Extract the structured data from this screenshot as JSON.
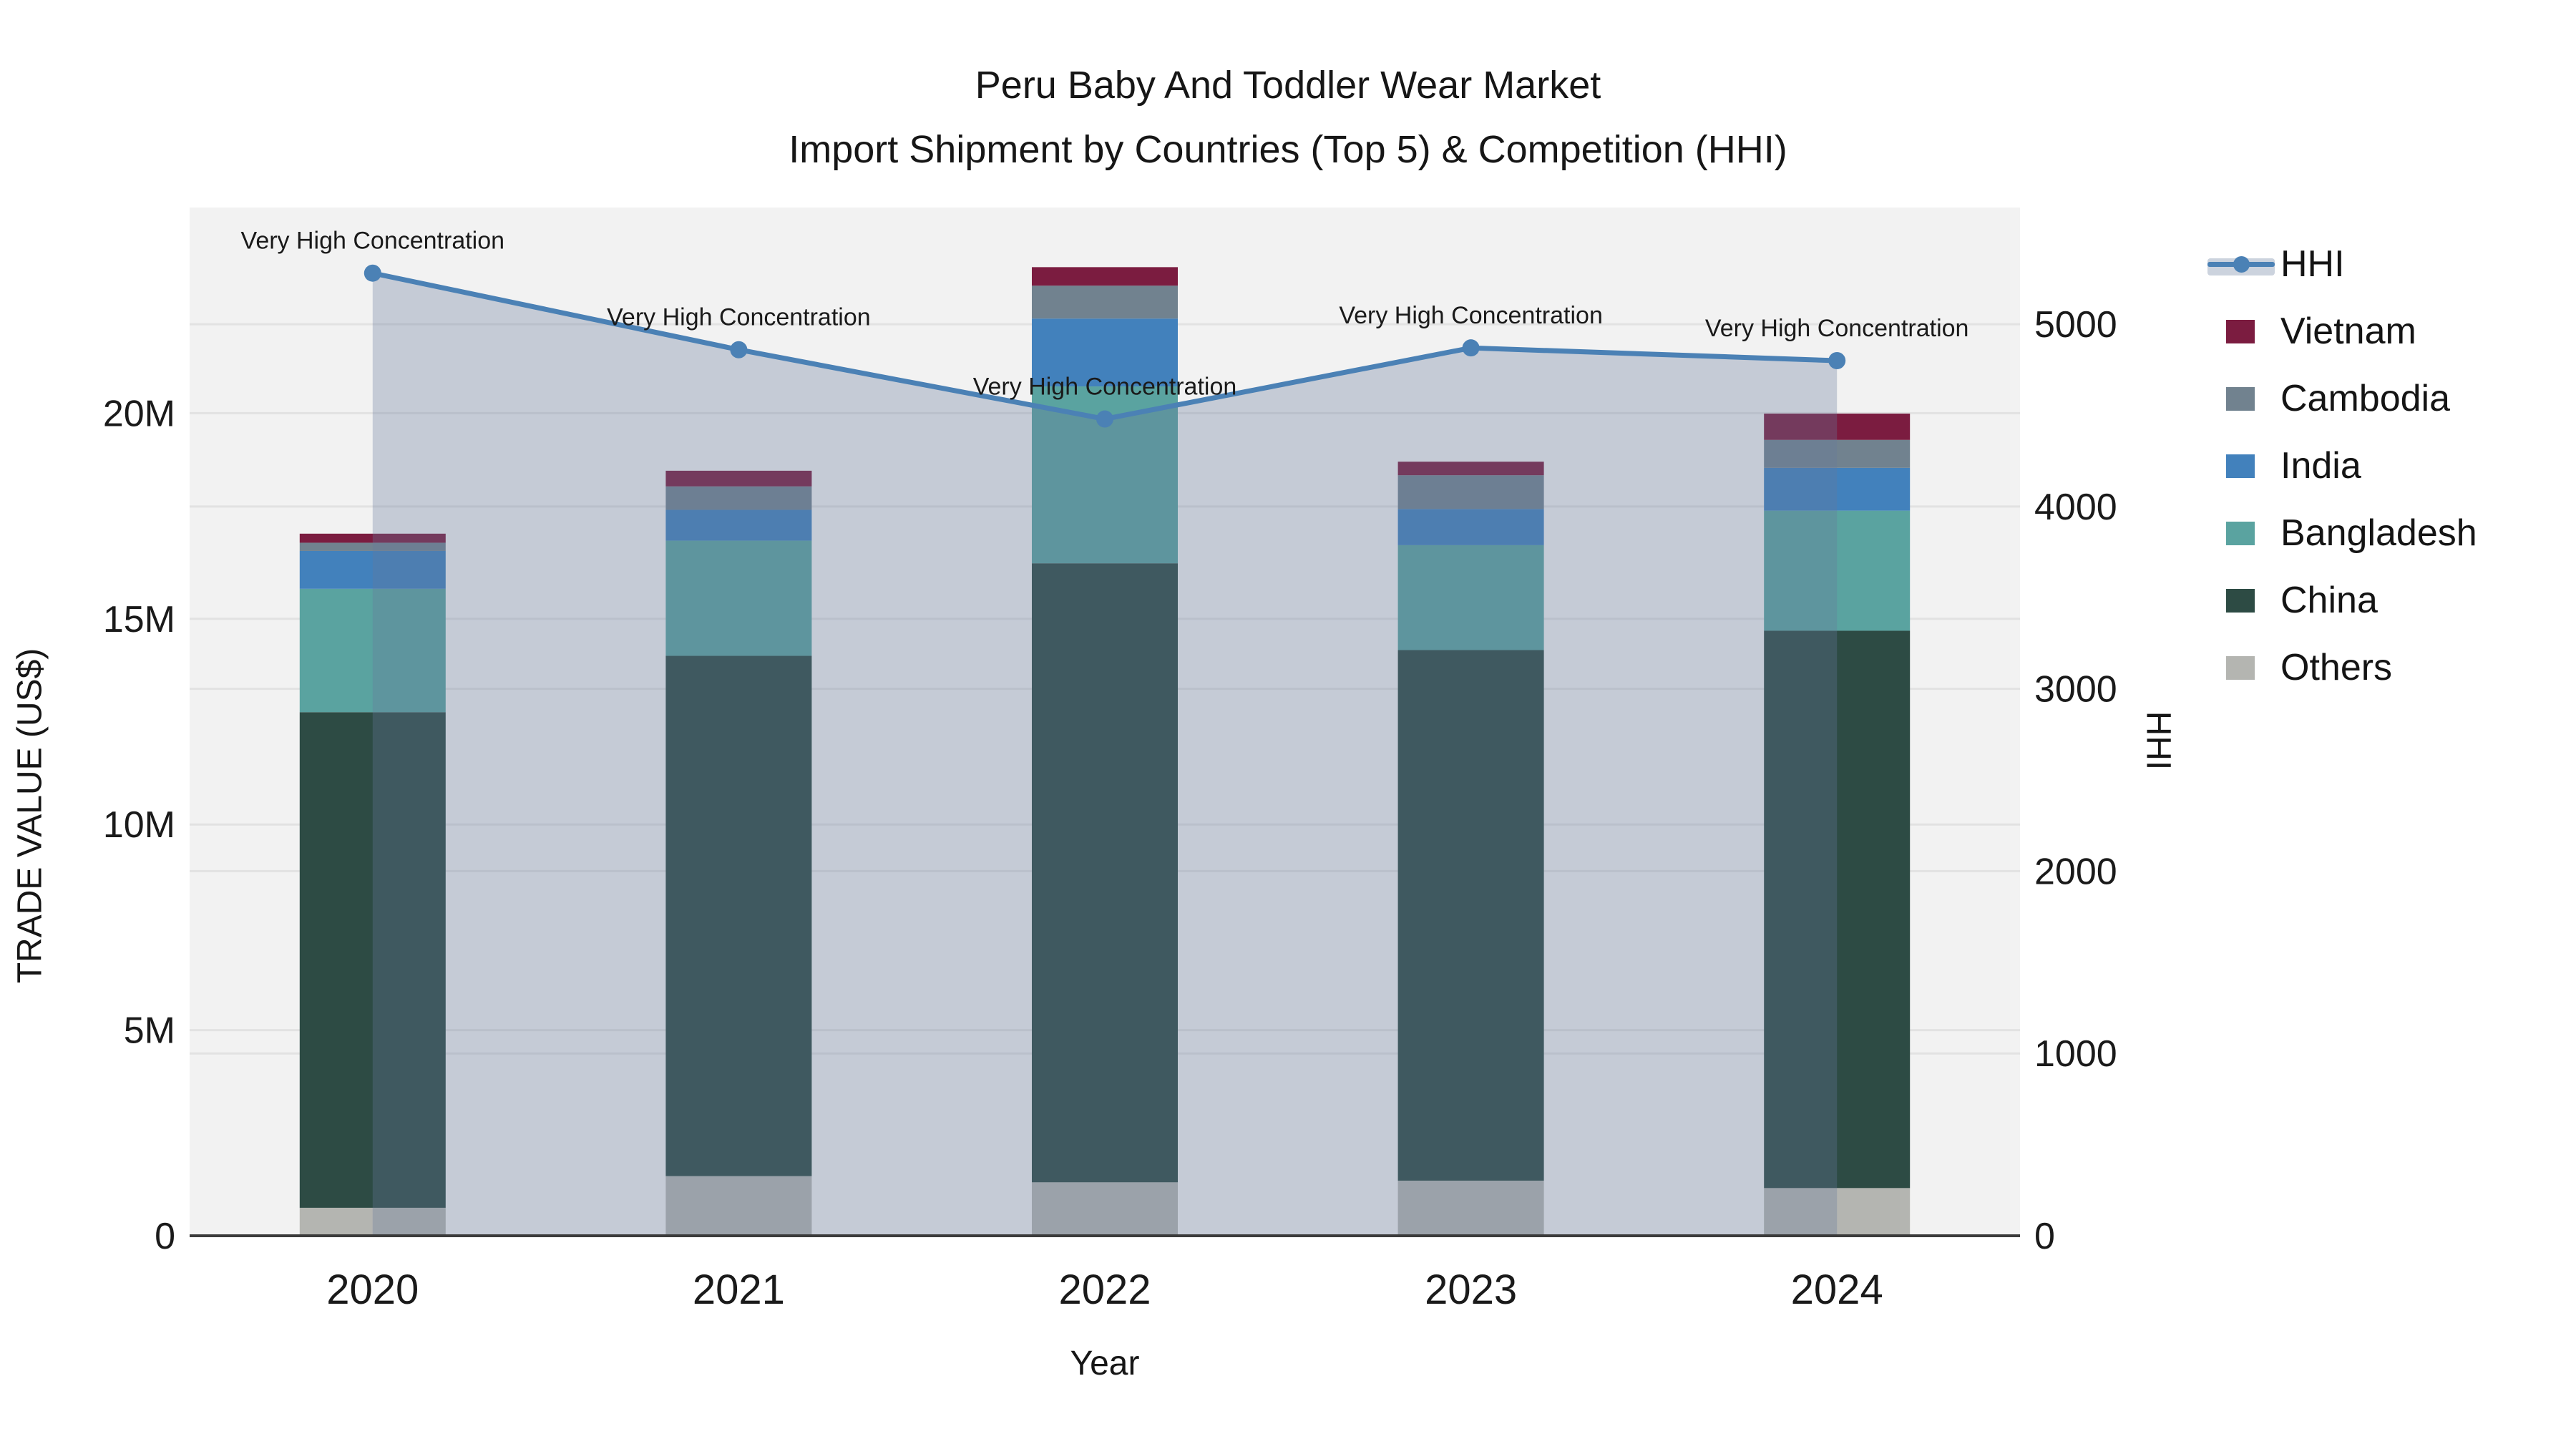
{
  "title": {
    "line1": "Peru Baby And Toddler Wear Market",
    "line2": "Import Shipment by Countries (Top 5) & Competition (HHI)"
  },
  "axes": {
    "x": {
      "title": "Year",
      "categories": [
        "2020",
        "2021",
        "2022",
        "2023",
        "2024"
      ]
    },
    "y_left": {
      "title": "TRADE VALUE (US$)",
      "ticks": [
        {
          "label": "0",
          "value": 0
        },
        {
          "label": "5M",
          "value": 5
        },
        {
          "label": "10M",
          "value": 10
        },
        {
          "label": "15M",
          "value": 15
        },
        {
          "label": "20M",
          "value": 20
        }
      ],
      "range": [
        0,
        25
      ],
      "unit": "US$ millions"
    },
    "y_right": {
      "title": "HHI",
      "ticks": [
        {
          "label": "0",
          "value": 0
        },
        {
          "label": "1000",
          "value": 1000
        },
        {
          "label": "2000",
          "value": 2000
        },
        {
          "label": "3000",
          "value": 3000
        },
        {
          "label": "4000",
          "value": 4000
        },
        {
          "label": "5000",
          "value": 5000
        }
      ],
      "range": [
        0,
        5640
      ]
    }
  },
  "legend": {
    "items": [
      {
        "label": "HHI",
        "swatch": "line"
      },
      {
        "label": "Vietnam",
        "swatch": "square",
        "color": "#7b1c40"
      },
      {
        "label": "Cambodia",
        "swatch": "square",
        "color": "#71828f"
      },
      {
        "label": "India",
        "swatch": "square",
        "color": "#4281bc"
      },
      {
        "label": "Bangladesh",
        "swatch": "square",
        "color": "#5aa3a0"
      },
      {
        "label": "China",
        "swatch": "square",
        "color": "#2d4b44"
      },
      {
        "label": "Others",
        "swatch": "square",
        "color": "#b4b5b1"
      }
    ]
  },
  "colors": {
    "plot_bg": "#f2f2f2",
    "grid": "#e2e2e2",
    "axis_line": "#3b3b3b",
    "hhi_line": "#4b81b5",
    "area_fill": "rgba(104,122,155,0.32)",
    "legend_band": "#ccd3de",
    "text": "#1a1a1a"
  },
  "chart_data": {
    "type": "bar",
    "stacked": true,
    "grid": true,
    "legend_position": "right",
    "categories": [
      "2020",
      "2021",
      "2022",
      "2023",
      "2024"
    ],
    "values_unit": "US$ millions",
    "series": [
      {
        "name": "Others",
        "color": "#b4b5b1",
        "values": [
          0.68,
          1.45,
          1.3,
          1.34,
          1.16
        ]
      },
      {
        "name": "China",
        "color": "#2d4b44",
        "values": [
          12.05,
          12.65,
          15.05,
          12.9,
          13.55
        ]
      },
      {
        "name": "Bangladesh",
        "color": "#5aa3a0",
        "values": [
          3.0,
          2.8,
          4.3,
          2.55,
          2.92
        ]
      },
      {
        "name": "India",
        "color": "#4281bc",
        "values": [
          0.92,
          0.75,
          1.65,
          0.88,
          1.04
        ]
      },
      {
        "name": "Cambodia",
        "color": "#71828f",
        "values": [
          0.2,
          0.57,
          0.8,
          0.82,
          0.68
        ]
      },
      {
        "name": "Vietnam",
        "color": "#7b1c40",
        "values": [
          0.22,
          0.38,
          0.45,
          0.33,
          0.64
        ]
      }
    ],
    "bar_totals": [
      17.07,
      18.6,
      23.55,
      18.82,
      19.99
    ],
    "line": {
      "name": "HHI",
      "axis": "right",
      "color": "#4b81b5",
      "values": [
        5280,
        4860,
        4480,
        4870,
        4800
      ],
      "area_under_line": true,
      "annotation_label": "Very High Concentration"
    }
  }
}
